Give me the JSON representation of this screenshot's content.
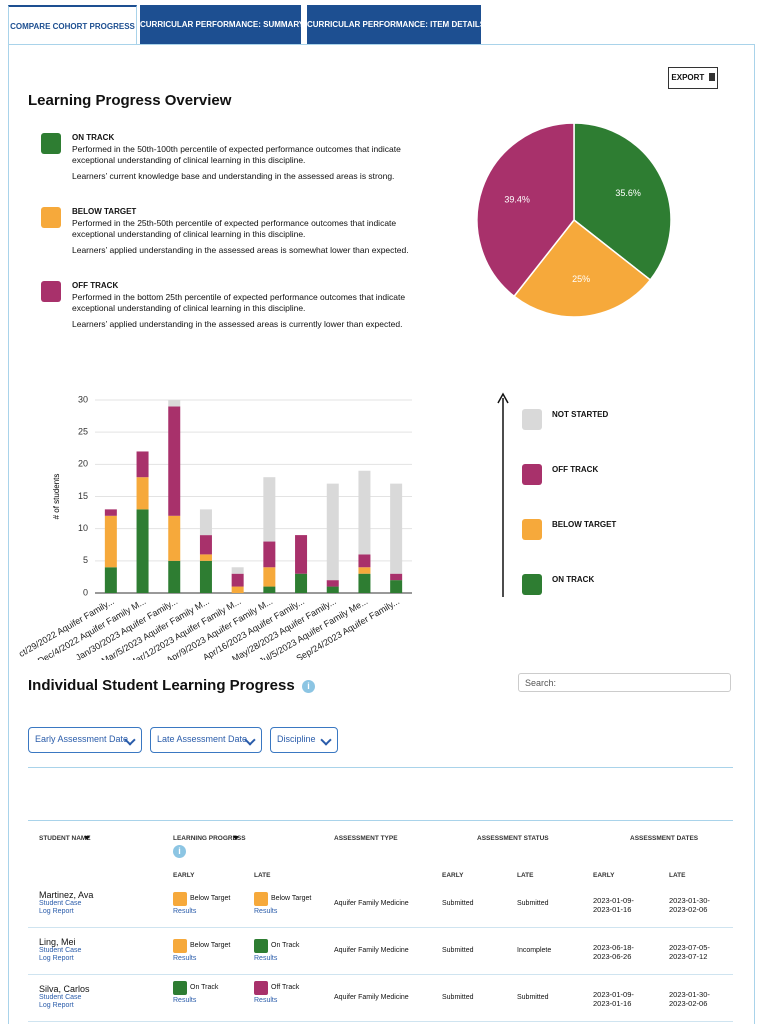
{
  "tabs": [
    "COMPARE COHORT PROGRESS",
    "CURRICULAR PERFORMANCE: SUMMARY",
    "CURRICULAR PERFORMANCE: ITEM DETAILS"
  ],
  "export": "EXPORT",
  "overview": {
    "title": "Learning Progress Overview",
    "legend": [
      {
        "title": "ON TRACK",
        "color": "#2e7d32",
        "description": [
          "Performed in the 50th-100th percentile of expected performance outcomes that indicate",
          "exceptional understanding of clinical learning in this discipline."
        ],
        "note": "Learners’ current knowledge base and understanding in the assessed areas is strong."
      },
      {
        "title": "BELOW TARGET",
        "color": "#f6a93b",
        "description": [
          "Performed in the 25th-50th percentile of expected performance outcomes that indicate",
          "exceptional understanding of clinical learning in this discipline."
        ],
        "note": "Learners’ applied understanding in the assessed areas is somewhat lower than expected."
      },
      {
        "title": "OFF TRACK",
        "color": "#a8316b",
        "description": [
          "Performed in the bottom 25th percentile of expected performance outcomes that indicate",
          "exceptional understanding of clinical learning in this discipline."
        ],
        "note": "Learners’ applied understanding in the assessed areas is currently lower than expected."
      }
    ]
  },
  "chart_data": [
    {
      "type": "pie",
      "values": [
        35.6,
        25,
        39.4
      ],
      "value_labels": [
        "35.6%",
        "25%",
        "39.4%"
      ],
      "colors": [
        "#2e7d32",
        "#f6a93b",
        "#a8316b"
      ]
    },
    {
      "type": "bar",
      "stacked": true,
      "ylabel": "# of students",
      "categories": [
        "ct/29/2022 Aquifer Family...",
        "Dec/4/2022 Aquifer Family M...",
        "Jan/30/2023 Aquifer Family...",
        "Mar/5/2023 Aquifer Family M...",
        "Mar/12/2023 Aquifer Family M...",
        "Apr/9/2023 Aquifer Family M...",
        "Apr/16/2023 Aquifer Family...",
        "May/28/2023 Aquifer Family...",
        "Jul/5/2023 Aquifer Family Me...",
        "Sep/24/2023 Aquifer Family..."
      ],
      "series": [
        {
          "name": "ON TRACK",
          "color": "#2e7d32",
          "values": [
            4,
            13,
            5,
            5,
            0,
            1,
            3,
            1,
            3,
            2
          ]
        },
        {
          "name": "BELOW TARGET",
          "color": "#f6a93b",
          "values": [
            8,
            5,
            7,
            1,
            1,
            3,
            0,
            0,
            1,
            0
          ]
        },
        {
          "name": "OFF TRACK",
          "color": "#a8316b",
          "values": [
            1,
            4,
            17,
            3,
            2,
            4,
            6,
            1,
            2,
            1
          ]
        },
        {
          "name": "NOT STARTED",
          "color": "#d9d9d9",
          "values": [
            0,
            0,
            1,
            4,
            1,
            10,
            0,
            15,
            13,
            14
          ]
        }
      ],
      "ylim": [
        0,
        30
      ],
      "yticks": [
        0,
        5,
        10,
        15,
        20,
        25,
        30
      ],
      "grid": true
    }
  ],
  "students": {
    "title": "Individual Student Learning Progress",
    "search_placeholder": "Search:",
    "filters": [
      "Early Assessment Date",
      "Late Assessment Date",
      "Discipline"
    ],
    "table": {
      "headers": [
        "STUDENT NAME",
        "LEARNING PROGRESS",
        "ASSESSMENT TYPE",
        "ASSESSMENT STATUS",
        "ASSESSMENT DATES"
      ],
      "subheaders": [
        "EARLY",
        "LATE",
        "EARLY",
        "LATE",
        "EARLY",
        "LATE"
      ],
      "rows": [
        {
          "name": "Martinez, Ava",
          "links": [
            "Student Case",
            "Log Report"
          ],
          "progress": [
            {
              "label": "Below Target",
              "color": "#f6a93b",
              "link": "Results"
            },
            {
              "label": "Below Target",
              "color": "#f6a93b",
              "link": "Results"
            }
          ],
          "type": "Aquifer Family Medicine",
          "status": [
            "Submitted",
            "Submitted"
          ],
          "dates": [
            [
              "2023-01-09-",
              "2023-01-16"
            ],
            [
              "2023-01-30-",
              "2023-02-06"
            ]
          ]
        },
        {
          "name": "Ling, Mei",
          "links": [
            "Student Case",
            "Log Report"
          ],
          "progress": [
            {
              "label": "Below Target",
              "color": "#f6a93b",
              "link": "Results"
            },
            {
              "label": "On Track",
              "color": "#2e7d32",
              "link": "Results"
            }
          ],
          "type": "Aquifer Family Medicine",
          "status": [
            "Submitted",
            "Incomplete"
          ],
          "dates": [
            [
              "2023-06-18-",
              "2023-06-26"
            ],
            [
              "2023-07-05-",
              "2023-07-12"
            ]
          ]
        },
        {
          "name": "Silva, Carlos",
          "links": [
            "Student Case",
            "Log Report"
          ],
          "progress": [
            {
              "label": "On Track",
              "color": "#2e7d32",
              "link": "Results"
            },
            {
              "label": "Off Track",
              "color": "#a8316b",
              "link": "Results"
            }
          ],
          "type": "Aquifer Family Medicine",
          "status": [
            "Submitted",
            "Submitted"
          ],
          "dates": [
            [
              "2023-01-09-",
              "2023-01-16"
            ],
            [
              "2023-01-30-",
              "2023-02-06"
            ]
          ]
        }
      ]
    }
  }
}
